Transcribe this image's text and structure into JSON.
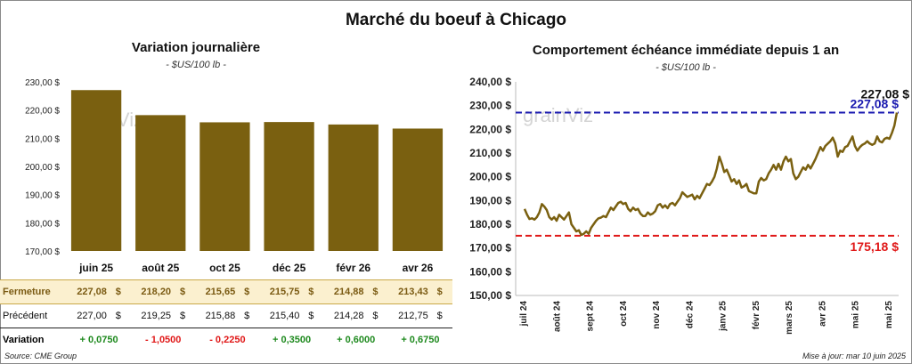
{
  "title": "Marché du boeuf à Chicago",
  "left": {
    "title": "Variation journalière",
    "unit": "- $US/100 lb -"
  },
  "right": {
    "title": "Comportement échéance immédiate depuis 1 an",
    "unit": "- $US/100 lb -"
  },
  "watermark": "grainViz",
  "table": {
    "rows": [
      {
        "label": "Fermeture",
        "values": [
          "227,08",
          "218,20",
          "215,65",
          "215,75",
          "214,88",
          "213,43"
        ]
      },
      {
        "label": "Précédent",
        "values": [
          "227,00",
          "219,25",
          "215,88",
          "215,40",
          "214,28",
          "212,75"
        ]
      },
      {
        "label": "Variation",
        "values": [
          "+ 0,0750",
          "- 1,0500",
          "- 0,2250",
          "+ 0,3500",
          "+ 0,6000",
          "+ 0,6750"
        ]
      }
    ],
    "currency": "$"
  },
  "source": "Source: CME Group",
  "updated": "Mise à jour: mar 10 juin 2025",
  "colors": {
    "bar": "#7a6010",
    "line": "#7a6010",
    "high": "#1a1ab0",
    "low": "#e01818",
    "pos": "#1f8a1f",
    "neg": "#e01818"
  },
  "chart_data": [
    {
      "type": "bar",
      "title": "Variation journalière",
      "categories": [
        "juin 25",
        "août 25",
        "oct 25",
        "déc 25",
        "févr 26",
        "avr 26"
      ],
      "values": [
        227.08,
        218.2,
        215.65,
        215.75,
        214.88,
        213.43
      ],
      "ylim": [
        170,
        230
      ],
      "yticks": [
        "170,00 $",
        "180,00 $",
        "190,00 $",
        "200,00 $",
        "210,00 $",
        "220,00 $",
        "230,00 $"
      ],
      "grid": false
    },
    {
      "type": "line",
      "title": "Comportement échéance immédiate depuis 1 an",
      "ylim": [
        150,
        240
      ],
      "yticks": [
        "150,00 $",
        "160,00 $",
        "170,00 $",
        "180,00 $",
        "190,00 $",
        "200,00 $",
        "210,00 $",
        "220,00 $",
        "230,00 $",
        "240,00 $"
      ],
      "xticks": [
        "juil 24",
        "août 24",
        "sept 24",
        "oct 24",
        "nov 24",
        "déc 24",
        "janv 25",
        "févr 25",
        "mars 25",
        "avr 25",
        "mai 25",
        "mai 25"
      ],
      "hlines": [
        {
          "value": 227.08,
          "label": "227,08 $",
          "color": "#1a1ab0",
          "style": "dashed"
        },
        {
          "value": 175.18,
          "label": "175,18 $",
          "color": "#e01818",
          "style": "dashed"
        }
      ],
      "last_label": "227,08 $",
      "series": [
        {
          "values": [
            186.5,
            184.0,
            182.2,
            182.5,
            182.0,
            183.0,
            185.0,
            188.5,
            187.5,
            186.0,
            183.0,
            182.0,
            183.0,
            181.5,
            184.0,
            183.0,
            182.0,
            183.5,
            185.0,
            180.0,
            178.5,
            177.0,
            177.5,
            175.5,
            176.0,
            177.0,
            176.0,
            178.5,
            180.0,
            181.5,
            182.5,
            182.8,
            183.5,
            183.0,
            185.0,
            187.0,
            186.0,
            187.5,
            189.0,
            189.5,
            188.5,
            189.0,
            186.5,
            185.5,
            187.0,
            186.0,
            186.5,
            184.5,
            183.5,
            183.5,
            185.0,
            184.0,
            184.5,
            185.5,
            188.0,
            188.5,
            187.0,
            188.0,
            186.8,
            188.5,
            189.0,
            188.0,
            189.5,
            191.0,
            193.5,
            192.5,
            191.5,
            192.0,
            192.5,
            190.5,
            192.0,
            191.0,
            193.0,
            195.0,
            197.0,
            196.5,
            198.0,
            200.0,
            203.5,
            208.5,
            205.5,
            202.0,
            203.0,
            200.5,
            198.0,
            199.0,
            197.0,
            198.5,
            195.5,
            196.0,
            197.0,
            194.0,
            193.5,
            193.0,
            193.0,
            198.0,
            199.5,
            198.5,
            199.0,
            201.5,
            203.0,
            205.0,
            203.0,
            205.5,
            203.0,
            206.5,
            208.5,
            206.5,
            207.5,
            201.5,
            199.0,
            200.0,
            202.0,
            204.0,
            203.0,
            205.0,
            203.5,
            205.5,
            207.5,
            210.0,
            212.5,
            211.0,
            213.0,
            214.0,
            215.0,
            216.5,
            214.0,
            208.5,
            211.0,
            210.5,
            212.5,
            213.0,
            215.0,
            217.0,
            213.0,
            211.0,
            212.5,
            213.5,
            214.0,
            215.0,
            214.0,
            213.5,
            214.0,
            217.0,
            215.0,
            214.5,
            216.0,
            216.5,
            216.0,
            218.5,
            221.5,
            227.08
          ]
        }
      ]
    }
  ]
}
